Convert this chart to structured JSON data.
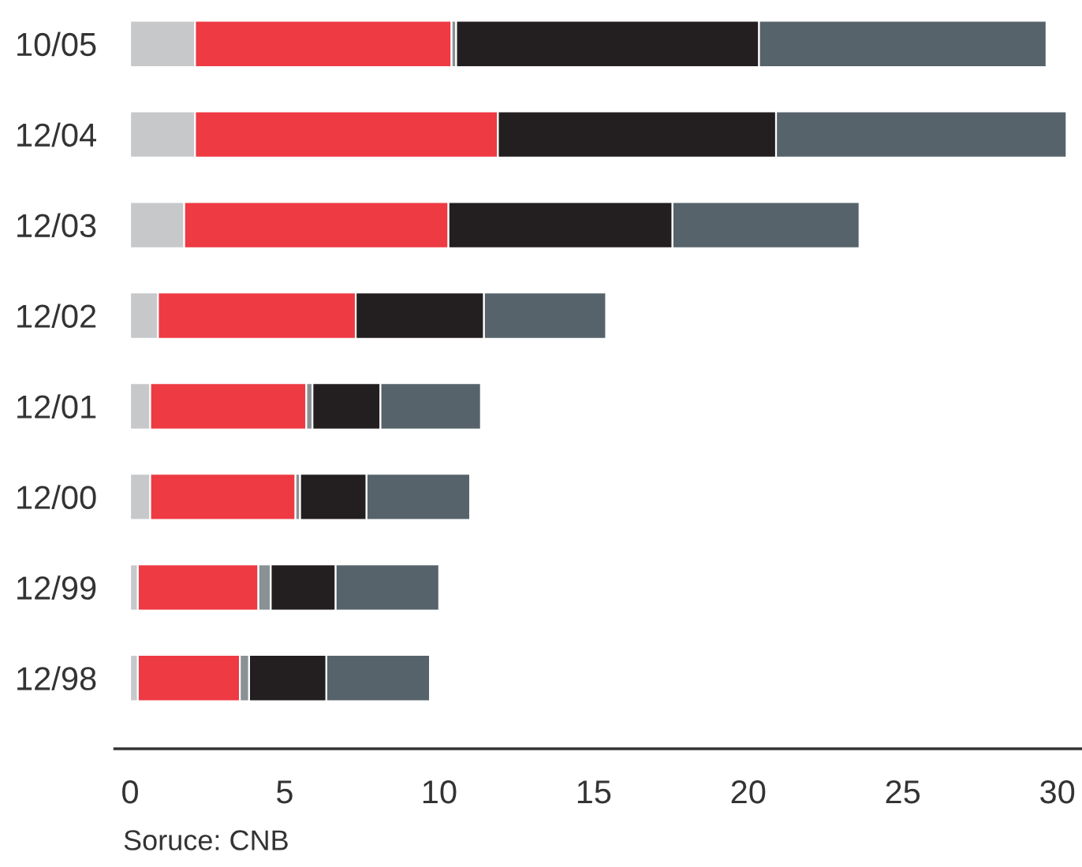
{
  "chart_data": {
    "type": "bar",
    "orientation": "horizontal",
    "stacked": true,
    "categories": [
      "10/05",
      "12/04",
      "12/03",
      "12/02",
      "12/01",
      "12/00",
      "12/99",
      "12/98"
    ],
    "series": [
      {
        "color": "#c7c8ca",
        "values": [
          2.1,
          2.1,
          1.75,
          0.9,
          0.65,
          0.65,
          0.25,
          0.25
        ]
      },
      {
        "color": "#ee3a43",
        "values": [
          8.3,
          9.8,
          8.55,
          6.4,
          5.05,
          4.7,
          3.9,
          3.3
        ]
      },
      {
        "color": "#8a9194",
        "values": [
          0.15,
          null,
          null,
          null,
          0.2,
          0.15,
          0.4,
          0.3
        ]
      },
      {
        "color": "#231f20",
        "values": [
          9.8,
          9.0,
          7.25,
          4.15,
          2.2,
          2.15,
          2.1,
          2.5
        ]
      },
      {
        "color": "#56636a",
        "values": [
          9.3,
          9.4,
          6.05,
          3.95,
          3.25,
          3.35,
          3.35,
          3.35
        ]
      }
    ],
    "xlim": [
      -0.5,
      30.8
    ],
    "xticks": [
      0,
      5,
      10,
      15,
      20,
      25,
      30
    ],
    "grid": false,
    "legend": false,
    "annotations": [
      "Soruce: CNB"
    ]
  }
}
